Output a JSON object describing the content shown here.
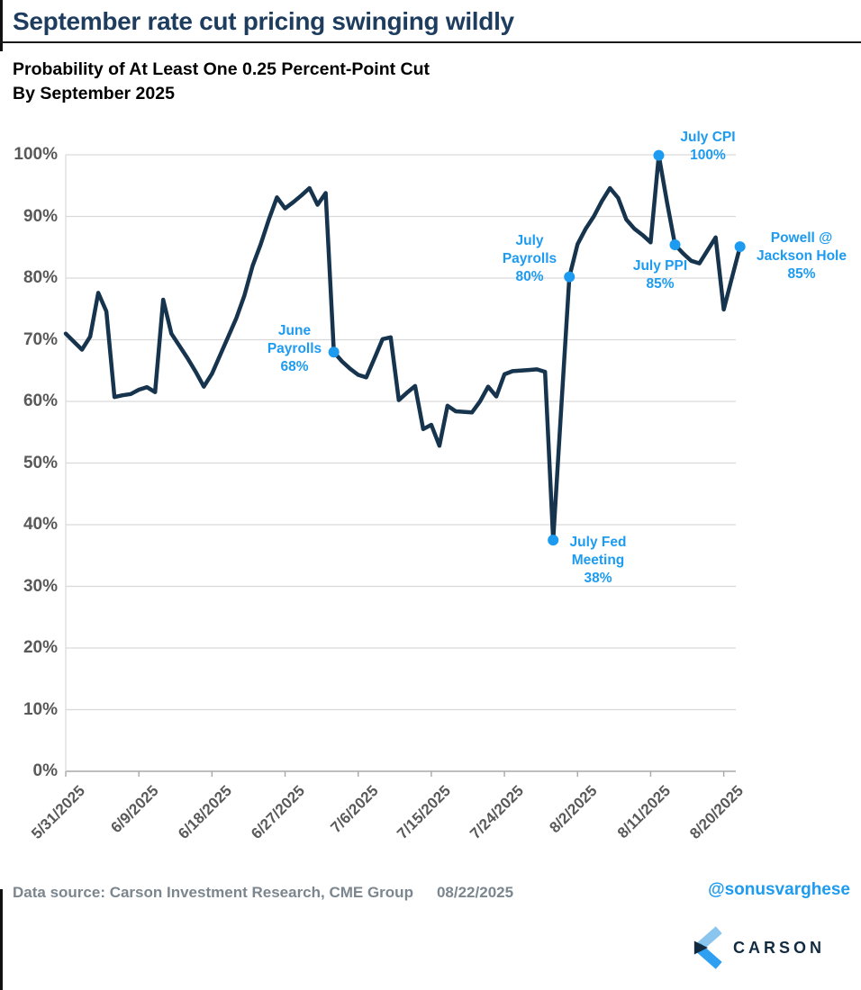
{
  "header": {
    "title": "September rate cut pricing swinging wildly",
    "subtitle_line1": "Probability of At Least One 0.25 Percent-Point Cut",
    "subtitle_line2": "By September 2025"
  },
  "chart_data": {
    "type": "line",
    "title": "Probability of At Least One 0.25 Percent-Point Cut By September 2025",
    "series_name": "Probability of at least one 0.25 percent-point cut by September 2025",
    "x_start_date": "5/31/2025",
    "x_end_date": "8/22/2025",
    "ylim": [
      0,
      100
    ],
    "grid": true,
    "legend": "none",
    "y_tick_labels": [
      "0%",
      "10%",
      "20%",
      "30%",
      "40%",
      "50%",
      "60%",
      "70%",
      "80%",
      "90%",
      "100%"
    ],
    "x_ticks": [
      {
        "label": "5/31/2025",
        "day": 0
      },
      {
        "label": "6/9/2025",
        "day": 9
      },
      {
        "label": "6/18/2025",
        "day": 18
      },
      {
        "label": "6/27/2025",
        "day": 27
      },
      {
        "label": "7/6/2025",
        "day": 36
      },
      {
        "label": "7/15/2025",
        "day": 45
      },
      {
        "label": "7/24/2025",
        "day": 54
      },
      {
        "label": "8/2/2025",
        "day": 63
      },
      {
        "label": "8/11/2025",
        "day": 72
      },
      {
        "label": "8/20/2025",
        "day": 81
      }
    ],
    "values_pct_by_day": [
      71,
      69.7,
      68.4,
      70.5,
      77.6,
      74.6,
      60.7,
      61,
      61.2,
      61.9,
      62.3,
      61.5,
      76.5,
      71,
      69,
      67,
      64.8,
      62.4,
      64.5,
      67.5,
      70.5,
      73.5,
      77.2,
      82,
      85.5,
      89.5,
      93.1,
      91.3,
      92.3,
      93.4,
      94.6,
      91.9,
      93.8,
      68,
      66.5,
      65.3,
      64.3,
      63.9,
      67,
      70.1,
      70.4,
      60.2,
      61.4,
      62.5,
      55.5,
      56.2,
      52.8,
      59.3,
      58.4,
      58.3,
      58.2,
      60,
      62.4,
      60.8,
      64.4,
      64.9,
      65,
      65.1,
      65.2,
      64.8,
      37.5,
      59,
      80.2,
      85.5,
      88,
      90,
      92.5,
      94.6,
      93,
      89.5,
      88,
      87,
      85.8,
      99.9,
      92.4,
      85.4,
      84,
      82.8,
      82.4,
      84.5,
      86.6,
      74.9,
      80,
      85.1
    ],
    "annotations": [
      {
        "lines": [
          "June",
          "Payrolls",
          "68%"
        ],
        "value": 68,
        "day": 33
      },
      {
        "lines": [
          "July Fed",
          "Meeting",
          "38%"
        ],
        "value": 38,
        "day": 60
      },
      {
        "lines": [
          "July",
          "Payrolls",
          "80%"
        ],
        "value": 80,
        "day": 62
      },
      {
        "lines": [
          "July CPI",
          "100%"
        ],
        "value": 100,
        "day": 73
      },
      {
        "lines": [
          "July PPI",
          "85%"
        ],
        "value": 85,
        "day": 75
      },
      {
        "lines": [
          "Powell @",
          "Jackson Hole",
          "85%"
        ],
        "value": 85,
        "day": 83
      }
    ],
    "line_color": "#16344e",
    "accent_color": "#1d9bf0",
    "axis_label_color": "#595959",
    "gridline_color": "#d9d9d9"
  },
  "footer": {
    "data_source": "Data source: Carson Investment Research, CME Group",
    "date": "08/22/2025",
    "handle": "@sonusvarghese",
    "logo_text": "CARSON"
  }
}
